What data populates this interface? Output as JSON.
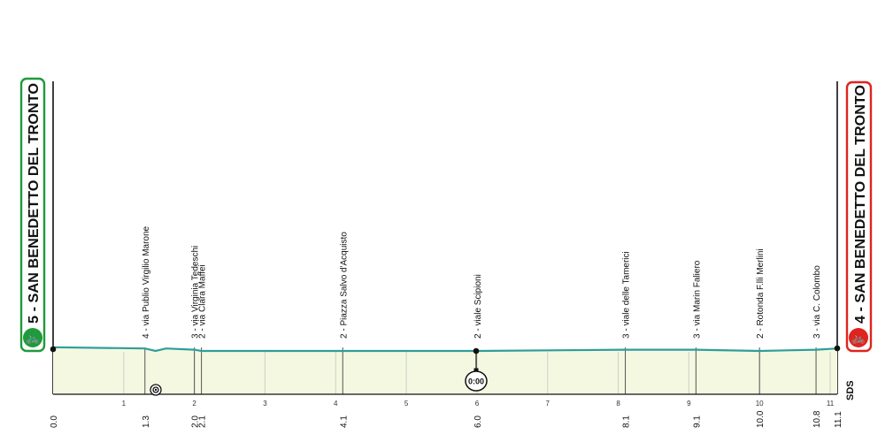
{
  "start": {
    "label": "5 - SAN BENEDETTO DEL TRONTO",
    "color": "#1f9a3c"
  },
  "finish": {
    "label": "4 - SAN BENEDETTO DEL TRONTO",
    "color": "#e0231d"
  },
  "logo": "SDS",
  "timecheck": {
    "label": "0:00",
    "km": 6.0
  },
  "km_ticks": [
    1,
    2,
    3,
    4,
    5,
    6,
    7,
    8,
    9,
    10,
    11
  ],
  "km_markers": [
    {
      "label": "0.0",
      "km": 0.0
    },
    {
      "label": "1.3",
      "km": 1.3
    },
    {
      "label": "2.0",
      "km": 2.0
    },
    {
      "label": "2.1",
      "km": 2.1
    },
    {
      "label": "4.1",
      "km": 4.1
    },
    {
      "label": "6.0",
      "km": 6.0
    },
    {
      "label": "8.1",
      "km": 8.1
    },
    {
      "label": "9.1",
      "km": 9.1
    },
    {
      "label": "10.0",
      "km": 10.0
    },
    {
      "label": "10.8",
      "km": 10.8
    },
    {
      "label": "11.1",
      "km": 11.1
    }
  ],
  "waypoints": [
    {
      "label": "4 - via Publio Virgilio Marone",
      "km": 1.3
    },
    {
      "label": "3 - via Virginia Tedeschi",
      "km": 2.0
    },
    {
      "label": "2 - via Clara Maffei",
      "km": 2.1
    },
    {
      "label": "2 - Piazza Salvo d'Acquisto",
      "km": 4.1
    },
    {
      "label": "2 - viale Scipioni",
      "km": 6.0
    },
    {
      "label": "3 - viale delle Tamerici",
      "km": 8.1
    },
    {
      "label": "3 - via Marin Faliero",
      "km": 9.1
    },
    {
      "label": "2 - Rotonda F.lli Merlini",
      "km": 10.0
    },
    {
      "label": "3 - via C. Colombo",
      "km": 10.8
    }
  ],
  "chart_data": {
    "type": "area",
    "x": [
      0.0,
      1.3,
      1.45,
      1.6,
      2.0,
      2.1,
      4.1,
      6.0,
      8.1,
      9.1,
      10.0,
      10.8,
      11.1
    ],
    "y": [
      5,
      4,
      2,
      4,
      3,
      2,
      2,
      2,
      3,
      3,
      2,
      3,
      4
    ],
    "xlim": [
      0,
      11.1
    ],
    "colors": {
      "line": "#2f9e9a",
      "fill": "#f5f8e1",
      "grid": "#c9d2c7"
    }
  }
}
